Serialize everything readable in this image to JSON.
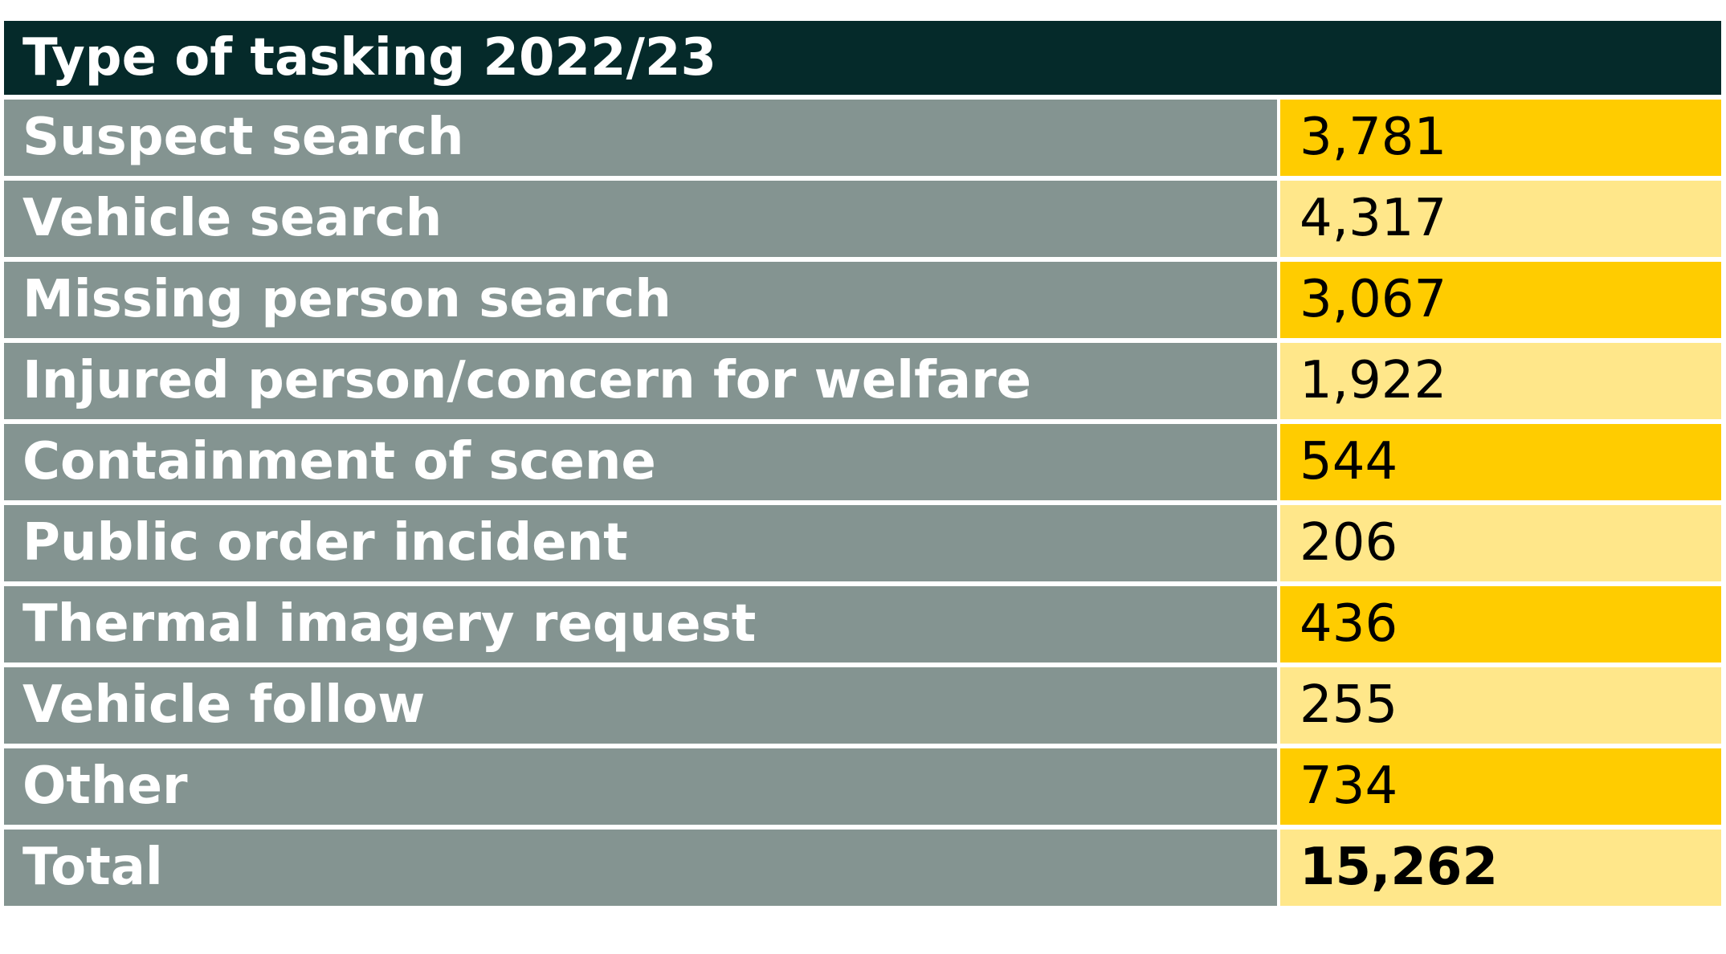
{
  "chart_data": {
    "type": "table",
    "title": "Type of tasking 2022/23",
    "rows": [
      {
        "label": "Suspect search",
        "value": "3,781"
      },
      {
        "label": "Vehicle search",
        "value": "4,317"
      },
      {
        "label": "Missing person search",
        "value": "3,067"
      },
      {
        "label": "Injured person/concern for welfare",
        "value": "1,922"
      },
      {
        "label": "Containment of scene",
        "value": "544"
      },
      {
        "label": "Public order incident",
        "value": "206"
      },
      {
        "label": "Thermal imagery request",
        "value": "436"
      },
      {
        "label": "Vehicle follow",
        "value": "255"
      },
      {
        "label": "Other",
        "value": "734"
      }
    ],
    "total": {
      "label": "Total",
      "value": "15,262"
    }
  },
  "colors": {
    "header_bg": "#052a2a",
    "label_bg": "#849491",
    "value_bg_dark": "#ffcc00",
    "value_bg_light": "#ffe78a"
  }
}
